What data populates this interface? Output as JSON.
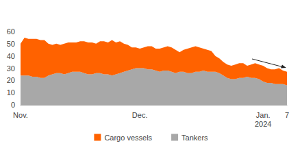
{
  "chart_data": {
    "type": "area",
    "stacked": true,
    "grid": false,
    "legend": "bottom",
    "categories": [
      "Nov.",
      null,
      null,
      null,
      null,
      null,
      null,
      null,
      null,
      null,
      null,
      null,
      null,
      null,
      null,
      null,
      null,
      null,
      null,
      null,
      null,
      null,
      null,
      null,
      null,
      null,
      null,
      null,
      null,
      null,
      "Dec.",
      null,
      null,
      null,
      null,
      null,
      null,
      null,
      null,
      null,
      null,
      null,
      null,
      null,
      null,
      null,
      null,
      null,
      null,
      null,
      null,
      null,
      null,
      null,
      null,
      null,
      null,
      null,
      null,
      null,
      null,
      "Jan.\n2024",
      null,
      null,
      null,
      null,
      null,
      "7"
    ],
    "series": [
      {
        "name": "Cargo vessels",
        "color": "#ff6200",
        "values": [
          26,
          31,
          30,
          31,
          31,
          31,
          31,
          26,
          24,
          24,
          23,
          25,
          25,
          24,
          24,
          25,
          26,
          26,
          26,
          24,
          26,
          27,
          26,
          29,
          26,
          26,
          23,
          21,
          18,
          17,
          16,
          17,
          19,
          19,
          18,
          19,
          19,
          20,
          20,
          19,
          16,
          18,
          20,
          21,
          21,
          20,
          18,
          18,
          17,
          13,
          12,
          11,
          11,
          11,
          12,
          12,
          12,
          9,
          11,
          12,
          12,
          13,
          12,
          11,
          12,
          13,
          11,
          11
        ]
      },
      {
        "name": "Tankers",
        "color": "#a8a8a8",
        "values": [
          24,
          24,
          24,
          23,
          23,
          22,
          22,
          24,
          25,
          26,
          26,
          25,
          26,
          27,
          27,
          27,
          26,
          25,
          25,
          26,
          26,
          25,
          25,
          24,
          25,
          26,
          27,
          28,
          29,
          30,
          30,
          30,
          29,
          29,
          28,
          27,
          28,
          28,
          27,
          26,
          27,
          27,
          26,
          26,
          27,
          27,
          28,
          27,
          27,
          27,
          26,
          24,
          22,
          21,
          21,
          22,
          22,
          23,
          22,
          22,
          21,
          19,
          18,
          18,
          17,
          17,
          17,
          16
        ]
      }
    ],
    "ylim": [
      0,
      60
    ],
    "yticks": [
      0,
      10,
      20,
      30,
      40,
      50,
      60
    ]
  }
}
